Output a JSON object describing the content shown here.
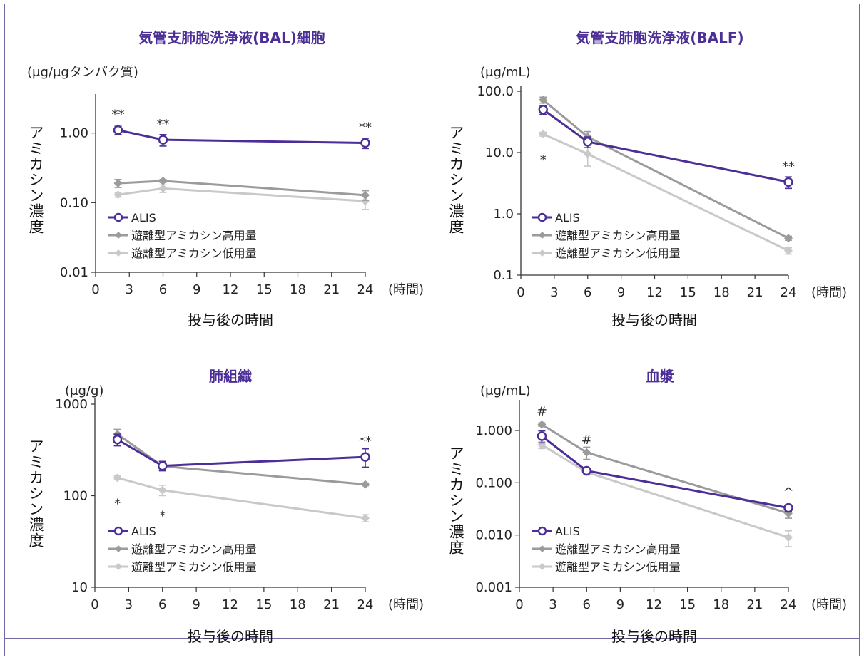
{
  "colors": {
    "ALIS": "#4b2e96",
    "high": "#9b9b9b",
    "low": "#c9c9c9"
  },
  "legend": [
    "ALIS",
    "遊離型アミカシン高用量",
    "遊離型アミカシン低用量"
  ],
  "chart_data": [
    {
      "type": "line",
      "title": "気管支肺胞洗浄液(BAL)細胞",
      "unit": "(μg/μgタンパク質)",
      "xlabel": "投与後の時間",
      "xunit": "(時間)",
      "ylabel": "アミカシン濃度",
      "yscale": "log",
      "ylim": [
        0.01,
        3
      ],
      "xlim": [
        0,
        24
      ],
      "yticks": [
        0.01,
        0.1,
        1
      ],
      "ytick_labels": [
        "0.01",
        "0.10",
        "1.00"
      ],
      "xticks": [
        0,
        3,
        6,
        9,
        12,
        15,
        18,
        21,
        24
      ],
      "xtick_labels": [
        "0",
        "3",
        "6",
        "9",
        "12",
        "15",
        "18",
        "21",
        "24"
      ],
      "legend_position": "bottom-left",
      "series": [
        {
          "name": "ALIS",
          "x": [
            2,
            6,
            24
          ],
          "y": [
            1.1,
            0.8,
            0.72
          ],
          "err": [
            0.15,
            0.15,
            0.12
          ]
        },
        {
          "name": "遊離型アミカシン高用量",
          "x": [
            2,
            6,
            24
          ],
          "y": [
            0.19,
            0.205,
            0.128
          ],
          "err": [
            0.025,
            0.01,
            0.02
          ]
        },
        {
          "name": "遊離型アミカシン低用量",
          "x": [
            2,
            6,
            24
          ],
          "y": [
            0.13,
            0.16,
            0.105
          ],
          "err": [
            0.01,
            0.02,
            0.025
          ]
        }
      ],
      "annotations": [
        {
          "x": 2,
          "y": 1.1,
          "text": "**"
        },
        {
          "x": 6,
          "y": 0.8,
          "text": "**"
        },
        {
          "x": 24,
          "y": 0.72,
          "text": "**"
        }
      ]
    },
    {
      "type": "line",
      "title": "気管支肺胞洗浄液(BALF)",
      "unit": "(μg/mL)",
      "xlabel": "投与後の時間",
      "xunit": "(時間)",
      "ylabel": "アミカシン濃度",
      "yscale": "log",
      "ylim": [
        0.1,
        100
      ],
      "xlim": [
        0,
        24
      ],
      "yticks": [
        0.1,
        1,
        10,
        100
      ],
      "ytick_labels": [
        "0.1",
        "1.0",
        "10.0",
        "100.0"
      ],
      "xticks": [
        0,
        3,
        6,
        9,
        12,
        15,
        18,
        21,
        24
      ],
      "xtick_labels": [
        "0",
        "3",
        "6",
        "9",
        "12",
        "15",
        "18",
        "21",
        "24"
      ],
      "legend_position": "bottom-left",
      "series": [
        {
          "name": "ALIS",
          "x": [
            2,
            6,
            24
          ],
          "y": [
            50,
            15,
            3.3
          ],
          "err": [
            8,
            3,
            0.7
          ]
        },
        {
          "name": "遊離型アミカシン高用量",
          "x": [
            2,
            6,
            24
          ],
          "y": [
            72,
            18,
            0.4
          ],
          "err": [
            8,
            4,
            0.03
          ]
        },
        {
          "name": "遊離型アミカシン低用量",
          "x": [
            2,
            6,
            24
          ],
          "y": [
            20,
            9.5,
            0.25
          ],
          "err": [
            1.5,
            3.5,
            0.03
          ]
        }
      ],
      "annotations": [
        {
          "x": 2,
          "y": 20,
          "text": "*"
        },
        {
          "x": 24,
          "y": 3.3,
          "text": "**"
        }
      ]
    },
    {
      "type": "line",
      "title": "肺組織",
      "unit": "(μg/g)",
      "xlabel": "投与後の時間",
      "xunit": "(時間)",
      "ylabel": "アミカシン濃度",
      "yscale": "log",
      "ylim": [
        10,
        1000
      ],
      "xlim": [
        0,
        24
      ],
      "yticks": [
        10,
        100,
        1000
      ],
      "ytick_labels": [
        "10",
        "100",
        "1000"
      ],
      "xticks": [
        0,
        3,
        6,
        9,
        12,
        15,
        18,
        21,
        24
      ],
      "xtick_labels": [
        "0",
        "3",
        "6",
        "9",
        "12",
        "15",
        "18",
        "21",
        "24"
      ],
      "legend_position": "bottom-left",
      "series": [
        {
          "name": "ALIS",
          "x": [
            2,
            6,
            24
          ],
          "y": [
            410,
            212,
            265
          ],
          "err": [
            60,
            25,
            60
          ]
        },
        {
          "name": "遊離型アミカシン高用量",
          "x": [
            2,
            6,
            24
          ],
          "y": [
            470,
            210,
            133
          ],
          "err": [
            60,
            15,
            5
          ]
        },
        {
          "name": "遊離型アミカシン低用量",
          "x": [
            2,
            6,
            24
          ],
          "y": [
            157,
            115,
            57
          ],
          "err": [
            8,
            15,
            5
          ]
        }
      ],
      "annotations": [
        {
          "x": 2,
          "y": 157,
          "text": "*"
        },
        {
          "x": 6,
          "y": 115,
          "text": "*"
        },
        {
          "x": 24,
          "y": 265,
          "text": "**"
        }
      ]
    },
    {
      "type": "line",
      "title": "血漿",
      "unit": "(μg/mL)",
      "xlabel": "投与後の時間",
      "xunit": "(時間)",
      "ylabel": "アミカシン濃度",
      "yscale": "log",
      "ylim": [
        0.001,
        3
      ],
      "xlim": [
        0,
        24
      ],
      "yticks": [
        0.001,
        0.01,
        0.1,
        1
      ],
      "ytick_labels": [
        "0.001",
        "0.010",
        "0.100",
        "1.000"
      ],
      "xticks": [
        0,
        3,
        6,
        9,
        12,
        15,
        18,
        21,
        24
      ],
      "xtick_labels": [
        "0",
        "3",
        "6",
        "9",
        "12",
        "15",
        "18",
        "21",
        "24"
      ],
      "legend_position": "bottom-left",
      "series": [
        {
          "name": "ALIS",
          "x": [
            2,
            6,
            24
          ],
          "y": [
            0.78,
            0.17,
            0.033
          ],
          "err": [
            0.2,
            0.02,
            0.005
          ]
        },
        {
          "name": "遊離型アミカシン高用量",
          "x": [
            2,
            6,
            24
          ],
          "y": [
            1.3,
            0.38,
            0.026
          ],
          "err": [
            0.1,
            0.1,
            0.005
          ]
        },
        {
          "name": "遊離型アミカシン低用量",
          "x": [
            2,
            6,
            24
          ],
          "y": [
            0.53,
            0.16,
            0.009
          ],
          "err": [
            0.08,
            0.02,
            0.003
          ]
        }
      ],
      "annotations": [
        {
          "x": 2,
          "y": 1.3,
          "text": "#"
        },
        {
          "x": 6,
          "y": 0.38,
          "text": "#"
        },
        {
          "x": 24,
          "y": 0.033,
          "text": "^"
        }
      ]
    }
  ]
}
